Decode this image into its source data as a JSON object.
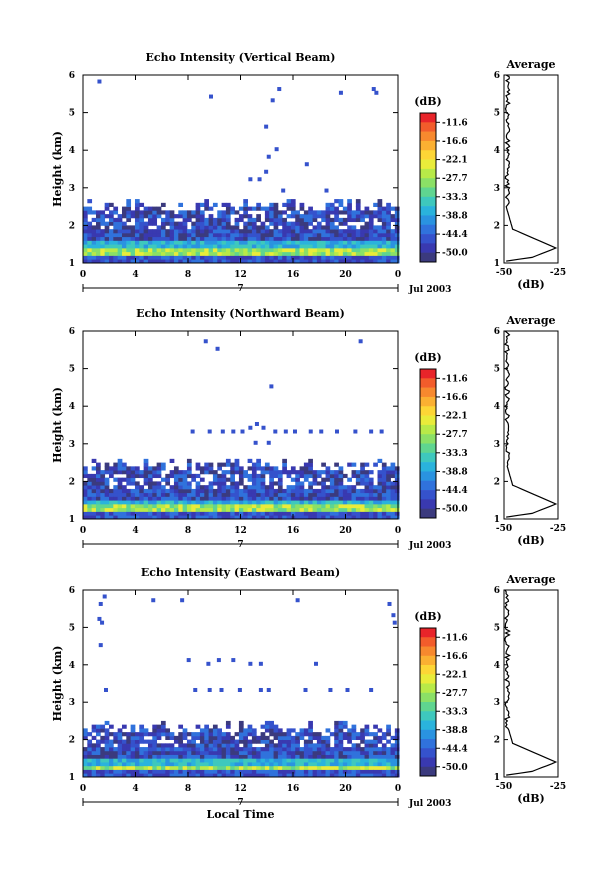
{
  "figure": {
    "xlabel": "Local Time",
    "x_ticks": [
      "0",
      "4",
      "8",
      "12",
      "16",
      "20",
      "0"
    ],
    "y_ticks": [
      "1",
      "2",
      "3",
      "4",
      "5",
      "6"
    ],
    "date_label": "7",
    "month_label": "Jul 2003",
    "ylabel": "Height (km)",
    "colorbar_unit": "(dB)",
    "colorbar_ticks": [
      "-11.6",
      "-16.6",
      "-22.1",
      "-27.7",
      "-33.3",
      "-38.8",
      "-44.4",
      "-50.0"
    ],
    "colorbar_colors": [
      "#e8242a",
      "#f25c2b",
      "#f7892e",
      "#fbb032",
      "#fdd636",
      "#e9ec3a",
      "#b8ea48",
      "#8be066",
      "#5fd590",
      "#3ec8bd",
      "#2ab3dc",
      "#2a93e0",
      "#3072dc",
      "#3552cc",
      "#3939b0",
      "#3b3a7e"
    ],
    "avg_title": "Average",
    "avg_xlabel": "(dB)",
    "avg_x_ticks": [
      "-50",
      "-25"
    ]
  },
  "chart_data": [
    {
      "type": "heatmap",
      "title": "Echo Intensity (Vertical Beam)",
      "xlabel": "Local Time",
      "ylabel": "Height (km)",
      "xlim": [
        0,
        24
      ],
      "ylim": [
        1,
        6
      ],
      "layer_top_km": 2.5,
      "scattered_echo": [
        [
          1.1,
          5.8
        ],
        [
          9.6,
          5.4
        ],
        [
          14.8,
          5.6
        ],
        [
          14.3,
          5.3
        ],
        [
          14.6,
          4.0
        ],
        [
          19.5,
          5.5
        ],
        [
          22.0,
          5.6
        ],
        [
          22.2,
          5.5
        ],
        [
          14.0,
          3.8
        ],
        [
          12.6,
          3.2
        ],
        [
          13.8,
          3.4
        ],
        [
          13.3,
          3.2
        ],
        [
          15.1,
          2.9
        ],
        [
          18.4,
          2.9
        ],
        [
          16.9,
          3.6
        ],
        [
          13.8,
          4.6
        ]
      ],
      "colorbar_range": [
        -50.0,
        -11.6
      ]
    },
    {
      "type": "heatmap",
      "title": "Echo Intensity (Northward Beam)",
      "xlabel": "Local Time",
      "ylabel": "Height (km)",
      "xlim": [
        0,
        24
      ],
      "ylim": [
        1,
        6
      ],
      "layer_top_km": 2.4,
      "scattered_echo": [
        [
          9.2,
          5.7
        ],
        [
          10.1,
          5.5
        ],
        [
          21.0,
          5.7
        ],
        [
          14.2,
          4.5
        ],
        [
          8.2,
          3.3
        ],
        [
          9.5,
          3.3
        ],
        [
          10.5,
          3.3
        ],
        [
          11.3,
          3.3
        ],
        [
          12.0,
          3.3
        ],
        [
          12.6,
          3.4
        ],
        [
          13.1,
          3.5
        ],
        [
          13.6,
          3.4
        ],
        [
          14.5,
          3.3
        ],
        [
          15.3,
          3.3
        ],
        [
          16.0,
          3.3
        ],
        [
          17.2,
          3.3
        ],
        [
          18.0,
          3.3
        ],
        [
          19.2,
          3.3
        ],
        [
          20.6,
          3.3
        ],
        [
          21.8,
          3.3
        ],
        [
          22.6,
          3.3
        ],
        [
          13.0,
          3.0
        ],
        [
          14.0,
          3.0
        ]
      ],
      "colorbar_range": [
        -50.0,
        -11.6
      ]
    },
    {
      "type": "heatmap",
      "title": "Echo Intensity (Eastward Beam)",
      "xlabel": "Local Time",
      "ylabel": "Height (km)",
      "xlim": [
        0,
        24
      ],
      "ylim": [
        1,
        6
      ],
      "layer_top_km": 2.3,
      "scattered_echo": [
        [
          1.2,
          5.6
        ],
        [
          1.5,
          5.8
        ],
        [
          1.1,
          5.2
        ],
        [
          1.3,
          5.1
        ],
        [
          1.2,
          4.5
        ],
        [
          5.2,
          5.7
        ],
        [
          7.4,
          5.7
        ],
        [
          16.2,
          5.7
        ],
        [
          23.2,
          5.6
        ],
        [
          23.5,
          5.3
        ],
        [
          23.6,
          5.1
        ],
        [
          7.9,
          4.1
        ],
        [
          9.4,
          4.0
        ],
        [
          10.2,
          4.1
        ],
        [
          11.3,
          4.1
        ],
        [
          12.6,
          4.0
        ],
        [
          13.4,
          4.0
        ],
        [
          17.6,
          4.0
        ],
        [
          1.6,
          3.3
        ],
        [
          8.4,
          3.3
        ],
        [
          9.5,
          3.3
        ],
        [
          10.4,
          3.3
        ],
        [
          11.8,
          3.3
        ],
        [
          13.4,
          3.3
        ],
        [
          14.0,
          3.3
        ],
        [
          16.8,
          3.3
        ],
        [
          18.7,
          3.3
        ],
        [
          20.0,
          3.3
        ],
        [
          21.8,
          3.3
        ]
      ],
      "colorbar_range": [
        -50.0,
        -11.6
      ]
    }
  ]
}
